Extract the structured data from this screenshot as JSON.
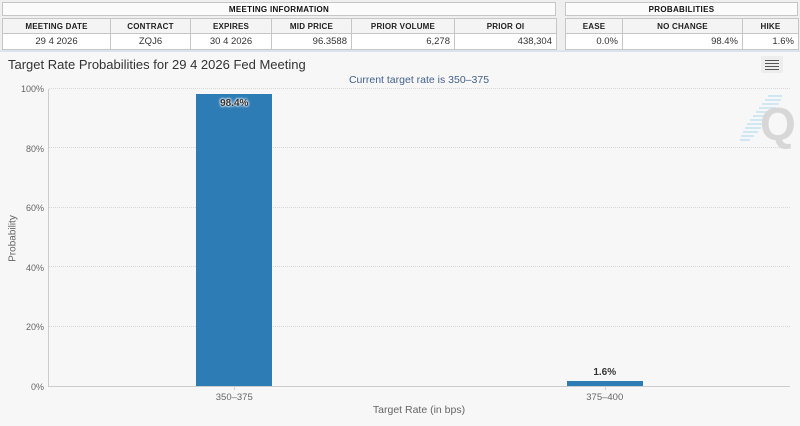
{
  "meeting_information": {
    "title": "MEETING INFORMATION",
    "columns": [
      "MEETING DATE",
      "CONTRACT",
      "EXPIRES",
      "MID PRICE",
      "PRIOR VOLUME",
      "PRIOR OI"
    ],
    "values": [
      "29 4 2026",
      "ZQJ6",
      "30 4 2026",
      "96.3588",
      "6,278",
      "438,304"
    ]
  },
  "probabilities_summary": {
    "title": "PROBABILITIES",
    "columns": [
      "EASE",
      "NO CHANGE",
      "HIKE"
    ],
    "values": [
      "0.0%",
      "98.4%",
      "1.6%"
    ]
  },
  "chart": {
    "title": "Target Rate Probabilities for 29 4 2026 Fed Meeting",
    "subtitle": "Current target rate is 350–375",
    "watermark_letter": "Q"
  },
  "chart_data": {
    "type": "bar",
    "categories": [
      "350–375",
      "375–400"
    ],
    "values": [
      98.4,
      1.6
    ],
    "data_labels": [
      "98.4%",
      "1.6%"
    ],
    "title": "Target Rate Probabilities for 29 4 2026 Fed Meeting",
    "subtitle": "Current target rate is 350–375",
    "xlabel": "Target Rate (in bps)",
    "ylabel": "Probability",
    "ytick_labels": [
      "0%",
      "20%",
      "40%",
      "60%",
      "80%",
      "100%"
    ],
    "ylim": [
      0,
      100
    ],
    "grid": "horizontal-dotted",
    "legend": "none",
    "bar_color": "#2e7cb5",
    "subtitle_color": "#44618e"
  }
}
